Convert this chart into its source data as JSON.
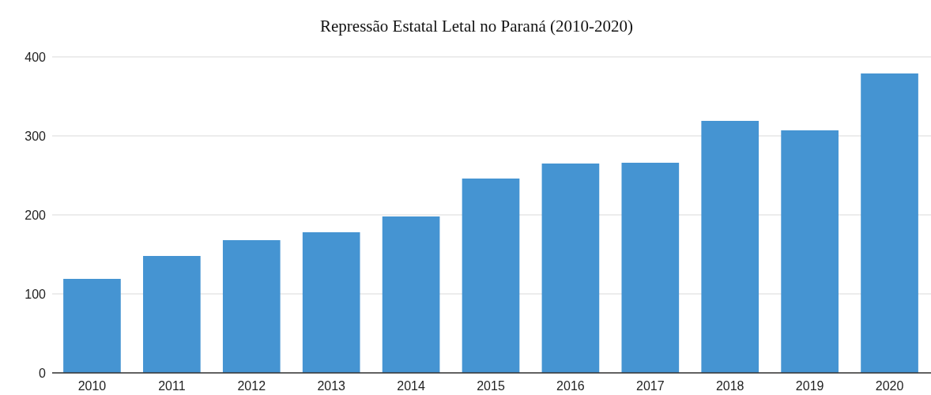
{
  "chart_data": {
    "type": "bar",
    "title": "Repressão Estatal Letal no Paraná (2010-2020)",
    "categories": [
      "2010",
      "2011",
      "2012",
      "2013",
      "2014",
      "2015",
      "2016",
      "2017",
      "2018",
      "2019",
      "2020"
    ],
    "values": [
      119,
      148,
      168,
      178,
      198,
      246,
      265,
      266,
      319,
      307,
      379
    ],
    "color": "#4594d2",
    "ylim": [
      0,
      400
    ],
    "yticks": [
      0,
      100,
      200,
      300,
      400
    ],
    "grid": "y"
  }
}
